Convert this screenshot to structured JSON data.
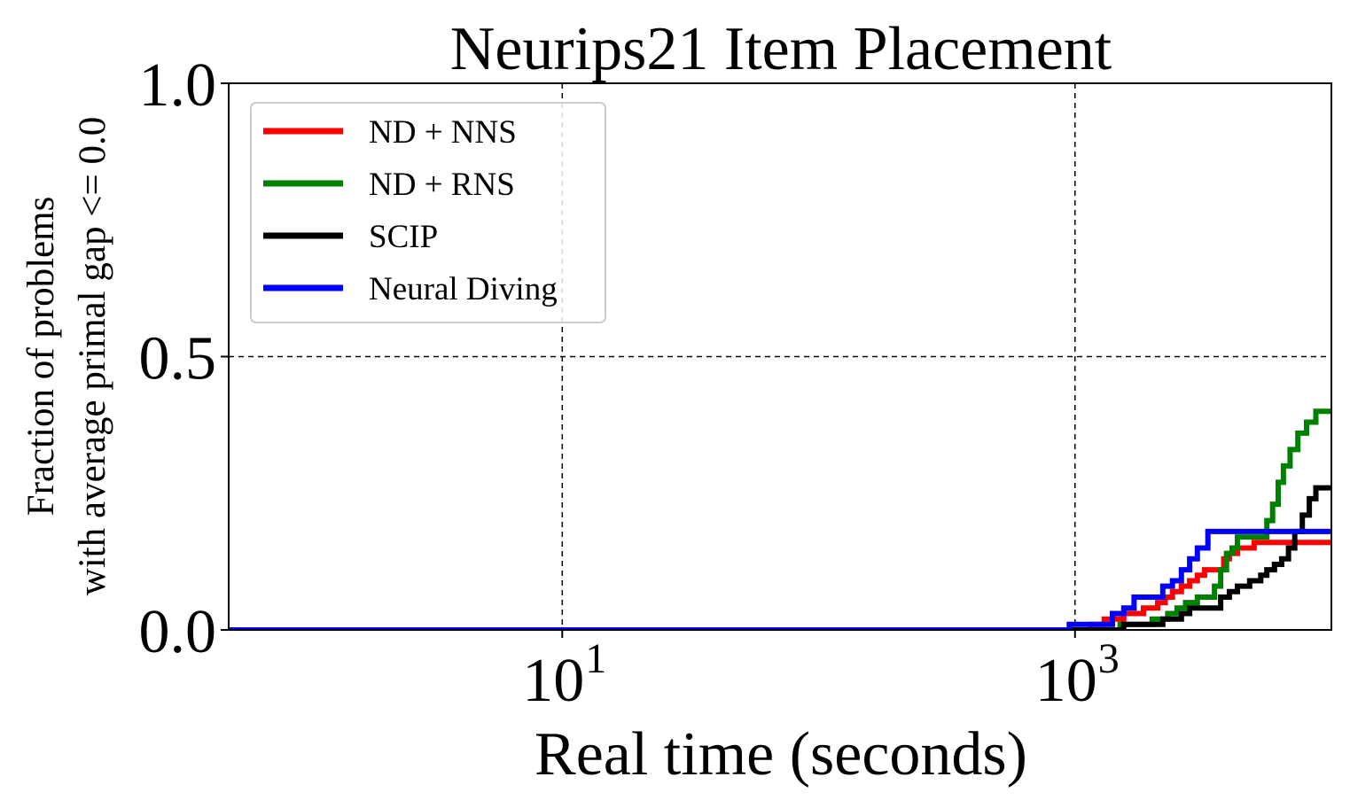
{
  "chart_data": {
    "type": "line",
    "title": "Neurips21 Item Placement",
    "xlabel": "Real time (seconds)",
    "ylabel_line1": "Fraction of problems",
    "ylabel_line2": "with average primal gap <= 0.0",
    "xscale": "log",
    "xlim": [
      0.5,
      10000
    ],
    "ylim": [
      0.0,
      1.0
    ],
    "xticks": [
      {
        "value": 10,
        "base": "10",
        "exp": "1"
      },
      {
        "value": 1000,
        "base": "10",
        "exp": "3"
      }
    ],
    "yticks": [
      {
        "value": 0.0,
        "label": "0.0"
      },
      {
        "value": 0.5,
        "label": "0.5"
      },
      {
        "value": 1.0,
        "label": "1.0"
      }
    ],
    "grid": true,
    "legend_position": "top-left",
    "series": [
      {
        "name": "ND + NNS",
        "color": "#ff0000",
        "points": [
          [
            0.5,
            0
          ],
          [
            1100,
            0
          ],
          [
            1150,
            0.01
          ],
          [
            1250,
            0.01
          ],
          [
            1300,
            0.02
          ],
          [
            1500,
            0.02
          ],
          [
            1550,
            0.03
          ],
          [
            1800,
            0.03
          ],
          [
            1850,
            0.04
          ],
          [
            2000,
            0.04
          ],
          [
            2100,
            0.05
          ],
          [
            2250,
            0.06
          ],
          [
            2400,
            0.07
          ],
          [
            2600,
            0.08
          ],
          [
            2800,
            0.09
          ],
          [
            3000,
            0.1
          ],
          [
            3200,
            0.11
          ],
          [
            3600,
            0.11
          ],
          [
            3800,
            0.13
          ],
          [
            4000,
            0.14
          ],
          [
            4300,
            0.15
          ],
          [
            5000,
            0.16
          ],
          [
            10000,
            0.16
          ]
        ]
      },
      {
        "name": "ND + RNS",
        "color": "#008000",
        "points": [
          [
            0.5,
            0
          ],
          [
            1400,
            0
          ],
          [
            1500,
            0.01
          ],
          [
            1900,
            0.01
          ],
          [
            2000,
            0.02
          ],
          [
            2300,
            0.03
          ],
          [
            2500,
            0.04
          ],
          [
            2700,
            0.05
          ],
          [
            3000,
            0.06
          ],
          [
            3400,
            0.06
          ],
          [
            3500,
            0.08
          ],
          [
            3700,
            0.11
          ],
          [
            3900,
            0.14
          ],
          [
            4100,
            0.15
          ],
          [
            4300,
            0.17
          ],
          [
            5500,
            0.17
          ],
          [
            5600,
            0.2
          ],
          [
            5900,
            0.23
          ],
          [
            6200,
            0.27
          ],
          [
            6500,
            0.3
          ],
          [
            6900,
            0.33
          ],
          [
            7400,
            0.36
          ],
          [
            8000,
            0.38
          ],
          [
            8700,
            0.4
          ],
          [
            10000,
            0.4
          ]
        ]
      },
      {
        "name": "SCIP",
        "color": "#000000",
        "points": [
          [
            0.5,
            0
          ],
          [
            1500,
            0
          ],
          [
            1550,
            0.01
          ],
          [
            2100,
            0.01
          ],
          [
            2200,
            0.02
          ],
          [
            2600,
            0.03
          ],
          [
            2800,
            0.04
          ],
          [
            3600,
            0.04
          ],
          [
            3700,
            0.06
          ],
          [
            4000,
            0.07
          ],
          [
            4300,
            0.08
          ],
          [
            4800,
            0.09
          ],
          [
            5300,
            0.1
          ],
          [
            5600,
            0.11
          ],
          [
            6000,
            0.12
          ],
          [
            6400,
            0.13
          ],
          [
            6800,
            0.15
          ],
          [
            7200,
            0.18
          ],
          [
            7700,
            0.21
          ],
          [
            8200,
            0.24
          ],
          [
            8700,
            0.26
          ],
          [
            10000,
            0.26
          ]
        ]
      },
      {
        "name": "Neural Diving",
        "color": "#0000ff",
        "points": [
          [
            0.5,
            0
          ],
          [
            900,
            0
          ],
          [
            950,
            0.01
          ],
          [
            1300,
            0.01
          ],
          [
            1400,
            0.03
          ],
          [
            1550,
            0.04
          ],
          [
            1700,
            0.06
          ],
          [
            2100,
            0.06
          ],
          [
            2200,
            0.08
          ],
          [
            2400,
            0.09
          ],
          [
            2600,
            0.11
          ],
          [
            2800,
            0.13
          ],
          [
            3000,
            0.15
          ],
          [
            3300,
            0.18
          ],
          [
            10000,
            0.18
          ]
        ]
      }
    ]
  }
}
